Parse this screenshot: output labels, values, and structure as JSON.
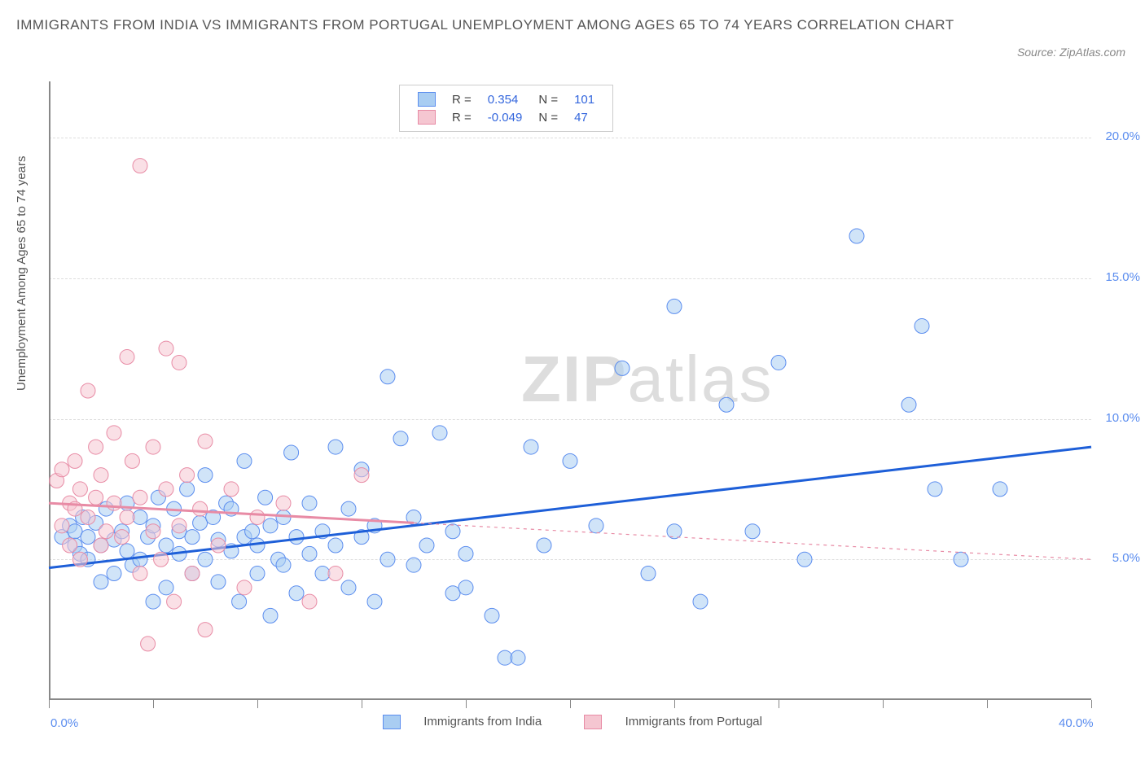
{
  "title": "IMMIGRANTS FROM INDIA VS IMMIGRANTS FROM PORTUGAL UNEMPLOYMENT AMONG AGES 65 TO 74 YEARS CORRELATION CHART",
  "source": "Source: ZipAtlas.com",
  "watermark_bold": "ZIP",
  "watermark_light": "atlas",
  "y_axis_label": "Unemployment Among Ages 65 to 74 years",
  "chart": {
    "type": "scatter",
    "background_color": "#ffffff",
    "grid_color": "#dddddd",
    "axis_color": "#888888",
    "title_fontsize": 17,
    "label_fontsize": 15,
    "xlim": [
      0,
      40
    ],
    "ylim": [
      0,
      22
    ],
    "x_ticks": [
      0,
      4,
      8,
      12,
      16,
      20,
      24,
      28,
      32,
      36,
      40
    ],
    "x_tick_labels": {
      "0": "0.0%",
      "40": "40.0%"
    },
    "y_ticks": [
      5,
      10,
      15,
      20
    ],
    "y_tick_labels": [
      "5.0%",
      "10.0%",
      "15.0%",
      "20.0%"
    ],
    "marker_radius": 9,
    "marker_opacity": 0.55,
    "line_width_solid": 3,
    "line_width_dashed": 1.2,
    "series": [
      {
        "name": "Immigrants from India",
        "color_fill": "#a9cdf2",
        "color_stroke": "#5b8def",
        "R": "0.354",
        "N": "101",
        "trend": {
          "x1": 0,
          "y1": 4.7,
          "x2": 40,
          "y2": 9.0,
          "dashed_from": null
        },
        "points": [
          [
            0.5,
            5.8
          ],
          [
            0.8,
            6.2
          ],
          [
            1.0,
            5.5
          ],
          [
            1.0,
            6.0
          ],
          [
            1.2,
            5.2
          ],
          [
            1.3,
            6.5
          ],
          [
            1.5,
            5.0
          ],
          [
            1.5,
            5.8
          ],
          [
            1.8,
            6.3
          ],
          [
            2.0,
            5.5
          ],
          [
            2.0,
            4.2
          ],
          [
            2.2,
            6.8
          ],
          [
            2.5,
            5.7
          ],
          [
            2.5,
            4.5
          ],
          [
            2.8,
            6.0
          ],
          [
            3.0,
            5.3
          ],
          [
            3.0,
            7.0
          ],
          [
            3.2,
            4.8
          ],
          [
            3.5,
            6.5
          ],
          [
            3.5,
            5.0
          ],
          [
            3.8,
            5.8
          ],
          [
            4.0,
            6.2
          ],
          [
            4.0,
            3.5
          ],
          [
            4.2,
            7.2
          ],
          [
            4.5,
            5.5
          ],
          [
            4.5,
            4.0
          ],
          [
            4.8,
            6.8
          ],
          [
            5.0,
            5.2
          ],
          [
            5.0,
            6.0
          ],
          [
            5.3,
            7.5
          ],
          [
            5.5,
            4.5
          ],
          [
            5.5,
            5.8
          ],
          [
            5.8,
            6.3
          ],
          [
            6.0,
            5.0
          ],
          [
            6.0,
            8.0
          ],
          [
            6.3,
            6.5
          ],
          [
            6.5,
            4.2
          ],
          [
            6.5,
            5.7
          ],
          [
            6.8,
            7.0
          ],
          [
            7.0,
            5.3
          ],
          [
            7.0,
            6.8
          ],
          [
            7.3,
            3.5
          ],
          [
            7.5,
            5.8
          ],
          [
            7.5,
            8.5
          ],
          [
            7.8,
            6.0
          ],
          [
            8.0,
            4.5
          ],
          [
            8.0,
            5.5
          ],
          [
            8.3,
            7.2
          ],
          [
            8.5,
            6.2
          ],
          [
            8.5,
            3.0
          ],
          [
            8.8,
            5.0
          ],
          [
            9.0,
            6.5
          ],
          [
            9.0,
            4.8
          ],
          [
            9.3,
            8.8
          ],
          [
            9.5,
            5.8
          ],
          [
            9.5,
            3.8
          ],
          [
            10.0,
            7.0
          ],
          [
            10.0,
            5.2
          ],
          [
            10.5,
            6.0
          ],
          [
            10.5,
            4.5
          ],
          [
            11.0,
            9.0
          ],
          [
            11.0,
            5.5
          ],
          [
            11.5,
            6.8
          ],
          [
            11.5,
            4.0
          ],
          [
            12.0,
            5.8
          ],
          [
            12.0,
            8.2
          ],
          [
            12.5,
            6.2
          ],
          [
            12.5,
            3.5
          ],
          [
            13.0,
            11.5
          ],
          [
            13.0,
            5.0
          ],
          [
            13.5,
            9.3
          ],
          [
            14.0,
            6.5
          ],
          [
            14.0,
            4.8
          ],
          [
            14.5,
            5.5
          ],
          [
            15.0,
            9.5
          ],
          [
            15.5,
            3.8
          ],
          [
            15.5,
            6.0
          ],
          [
            16.0,
            5.2
          ],
          [
            16.0,
            4.0
          ],
          [
            17.0,
            3.0
          ],
          [
            17.5,
            1.5
          ],
          [
            18.0,
            1.5
          ],
          [
            18.5,
            9.0
          ],
          [
            19.0,
            5.5
          ],
          [
            20.0,
            8.5
          ],
          [
            21.0,
            6.2
          ],
          [
            22.0,
            11.8
          ],
          [
            23.0,
            4.5
          ],
          [
            24.0,
            14.0
          ],
          [
            24.0,
            6.0
          ],
          [
            25.0,
            3.5
          ],
          [
            26.0,
            10.5
          ],
          [
            27.0,
            6.0
          ],
          [
            28.0,
            12.0
          ],
          [
            29.0,
            5.0
          ],
          [
            31.0,
            16.5
          ],
          [
            33.0,
            10.5
          ],
          [
            33.5,
            13.3
          ],
          [
            34.0,
            7.5
          ],
          [
            35.0,
            5.0
          ],
          [
            36.5,
            7.5
          ]
        ]
      },
      {
        "name": "Immigrants from Portugal",
        "color_fill": "#f5c6d1",
        "color_stroke": "#e88ba5",
        "R": "-0.049",
        "N": "47",
        "trend": {
          "x1": 0,
          "y1": 7.0,
          "x2": 40,
          "y2": 5.0,
          "dashed_from": 14
        },
        "points": [
          [
            0.3,
            7.8
          ],
          [
            0.5,
            6.2
          ],
          [
            0.5,
            8.2
          ],
          [
            0.8,
            7.0
          ],
          [
            0.8,
            5.5
          ],
          [
            1.0,
            6.8
          ],
          [
            1.0,
            8.5
          ],
          [
            1.2,
            7.5
          ],
          [
            1.2,
            5.0
          ],
          [
            1.5,
            11.0
          ],
          [
            1.5,
            6.5
          ],
          [
            1.8,
            9.0
          ],
          [
            1.8,
            7.2
          ],
          [
            2.0,
            5.5
          ],
          [
            2.0,
            8.0
          ],
          [
            2.2,
            6.0
          ],
          [
            2.5,
            9.5
          ],
          [
            2.5,
            7.0
          ],
          [
            2.8,
            5.8
          ],
          [
            3.0,
            12.2
          ],
          [
            3.0,
            6.5
          ],
          [
            3.2,
            8.5
          ],
          [
            3.5,
            4.5
          ],
          [
            3.5,
            7.2
          ],
          [
            3.5,
            19.0
          ],
          [
            3.8,
            2.0
          ],
          [
            4.0,
            6.0
          ],
          [
            4.0,
            9.0
          ],
          [
            4.3,
            5.0
          ],
          [
            4.5,
            12.5
          ],
          [
            4.5,
            7.5
          ],
          [
            4.8,
            3.5
          ],
          [
            5.0,
            6.2
          ],
          [
            5.0,
            12.0
          ],
          [
            5.3,
            8.0
          ],
          [
            5.5,
            4.5
          ],
          [
            5.8,
            6.8
          ],
          [
            6.0,
            2.5
          ],
          [
            6.0,
            9.2
          ],
          [
            6.5,
            5.5
          ],
          [
            7.0,
            7.5
          ],
          [
            7.5,
            4.0
          ],
          [
            8.0,
            6.5
          ],
          [
            9.0,
            7.0
          ],
          [
            10.0,
            3.5
          ],
          [
            11.0,
            4.5
          ],
          [
            12.0,
            8.0
          ]
        ]
      }
    ],
    "stats_legend": {
      "R_label": "R =",
      "N_label": "N ="
    },
    "bottom_legend_labels": [
      "Immigrants from India",
      "Immigrants from Portugal"
    ]
  }
}
